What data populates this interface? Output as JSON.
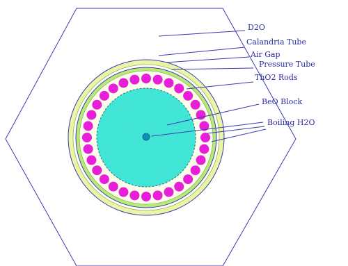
{
  "labels": {
    "d2o": "D2O",
    "calandria_tube": "Calandria Tube",
    "air_gap": "Air Gap",
    "pressure_tube": "Pressure Tube",
    "tho2_rods": "ThO2 Rods",
    "beo_block": "BeO Block",
    "boiling_h2o": "Boiling H2O"
  },
  "colors": {
    "outline": "#3a3ab0",
    "calandria_ring": "#e9f6a6",
    "air_gap": "#ffffff",
    "pressure_ring": "#b9e978",
    "rod_ring": "#fbfcea",
    "rods": "#e71fd8",
    "beo_fill": "#3fe6d5",
    "coolant_channel": "#0e8fb8",
    "label_text": "#2a2aa0"
  },
  "rods": {
    "count": 32
  }
}
